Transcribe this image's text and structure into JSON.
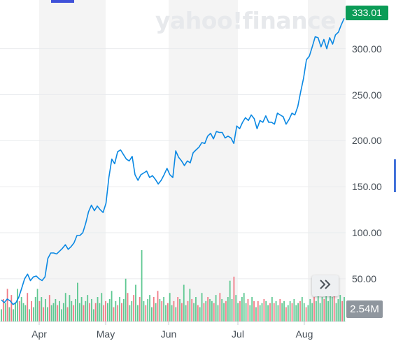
{
  "watermark": "yahoo!finance",
  "price_badge": "333.01",
  "volume_badge": "2.54M",
  "colors": {
    "line": "#0a88e3",
    "price_badge": "#0b9c57",
    "volume_up": "#5fc892",
    "volume_down": "#f17b86",
    "month_band": "#f4f4f4",
    "volume_badge": "#8f969e"
  },
  "icons": {
    "expand": "double-chevron-right-icon"
  },
  "chart_data": {
    "type": "line",
    "x_ticks": [
      "Apr",
      "May",
      "Jun",
      "Jul",
      "Aug"
    ],
    "y_ticks": [
      "50.00",
      "100.00",
      "150.00",
      "200.00",
      "250.00",
      "300.00"
    ],
    "y_tick_values": [
      50,
      100,
      150,
      200,
      250,
      300
    ],
    "ylim": [
      15,
      340
    ],
    "grid": true,
    "series": [
      {
        "values": [
          27,
          24,
          28,
          26,
          22,
          24,
          30,
          40,
          50,
          55,
          48,
          52,
          53,
          50,
          48,
          52,
          72,
          78,
          78,
          77,
          80,
          83,
          87,
          82,
          85,
          89,
          97,
          97,
          100,
          110,
          123,
          130,
          124,
          129,
          125,
          122,
          132,
          160,
          180,
          175,
          188,
          190,
          185,
          180,
          178,
          183,
          163,
          157,
          163,
          165,
          167,
          160,
          162,
          158,
          153,
          157,
          163,
          170,
          163,
          160,
          189,
          182,
          178,
          173,
          178,
          176,
          187,
          190,
          193,
          198,
          197,
          205,
          208,
          202,
          210,
          209,
          209,
          203,
          205,
          203,
          197,
          216,
          213,
          220,
          225,
          222,
          228,
          224,
          213,
          222,
          220,
          227,
          220,
          220,
          218,
          230,
          228,
          226,
          218,
          223,
          230,
          228,
          237,
          253,
          268,
          288,
          292,
          302,
          313,
          312,
          302,
          310,
          300,
          312,
          305,
          315,
          318,
          326,
          333
        ]
      }
    ],
    "volume": {
      "values": [
        6,
        11,
        9,
        16,
        7,
        13,
        6,
        9,
        16,
        10,
        12,
        9,
        8,
        14,
        6,
        10,
        7,
        12,
        16,
        10,
        12,
        7,
        11,
        7,
        13,
        8,
        9,
        11,
        8,
        10,
        6,
        9,
        14,
        7,
        13,
        10,
        8,
        11,
        19,
        9,
        12,
        8,
        10,
        13,
        9,
        11,
        6,
        9,
        12,
        9,
        14,
        8,
        10,
        9,
        11,
        15,
        7,
        10,
        8,
        12,
        9,
        11,
        21,
        14,
        8,
        10,
        13,
        18,
        8,
        12,
        35,
        10,
        8,
        11,
        13,
        7,
        12,
        9,
        15,
        11,
        10,
        12,
        8,
        9,
        14,
        8,
        10,
        7,
        12,
        11,
        9,
        18,
        8,
        10,
        16,
        11,
        9,
        12,
        8,
        7,
        14,
        9,
        10,
        12,
        11,
        10,
        9,
        13,
        8,
        14,
        11,
        9,
        10,
        12,
        20,
        11,
        22,
        13,
        9,
        10,
        12,
        14,
        9,
        11,
        8,
        12,
        10,
        7,
        10,
        8,
        9,
        11,
        10,
        8,
        9,
        12,
        9,
        10,
        8,
        11,
        9,
        10,
        7,
        8,
        10,
        9,
        11,
        8,
        9,
        10,
        12,
        9,
        7,
        8,
        11,
        9,
        12,
        10,
        15,
        9,
        12,
        11,
        14,
        10,
        16,
        12,
        14,
        9,
        11,
        13,
        10,
        12
      ],
      "up": [
        1,
        0,
        1,
        0,
        1,
        0,
        1,
        1,
        1,
        0,
        1,
        1,
        1,
        0,
        1,
        0,
        1,
        1,
        1,
        0,
        1,
        0,
        1,
        1,
        0,
        1,
        1,
        1,
        0,
        1,
        1,
        1,
        1,
        0,
        1,
        1,
        0,
        1,
        1,
        1,
        1,
        0,
        1,
        1,
        0,
        1,
        1,
        0,
        1,
        1,
        1,
        0,
        0,
        1,
        1,
        1,
        0,
        1,
        0,
        1,
        0,
        1,
        1,
        0,
        1,
        1,
        0,
        1,
        1,
        0,
        1,
        1,
        0,
        1,
        1,
        1,
        0,
        1,
        0,
        1,
        0,
        1,
        1,
        0,
        1,
        1,
        0,
        1,
        0,
        1,
        0,
        1,
        1,
        0,
        1,
        0,
        1,
        1,
        0,
        1,
        1,
        0,
        1,
        0,
        1,
        1,
        0,
        1,
        1,
        0,
        1,
        1,
        0,
        1,
        1,
        1,
        0,
        1,
        1,
        0,
        1,
        1,
        1,
        0,
        1,
        1,
        0,
        1,
        0,
        1,
        1,
        0,
        1,
        1,
        0,
        1,
        0,
        1,
        1,
        0,
        1,
        1,
        0,
        1,
        1,
        0,
        1,
        1,
        1,
        0,
        1,
        1,
        0,
        1,
        1,
        1,
        0,
        1,
        1,
        1,
        1,
        0,
        1,
        1,
        1,
        1,
        0,
        1,
        1,
        1,
        0,
        1
      ]
    }
  }
}
